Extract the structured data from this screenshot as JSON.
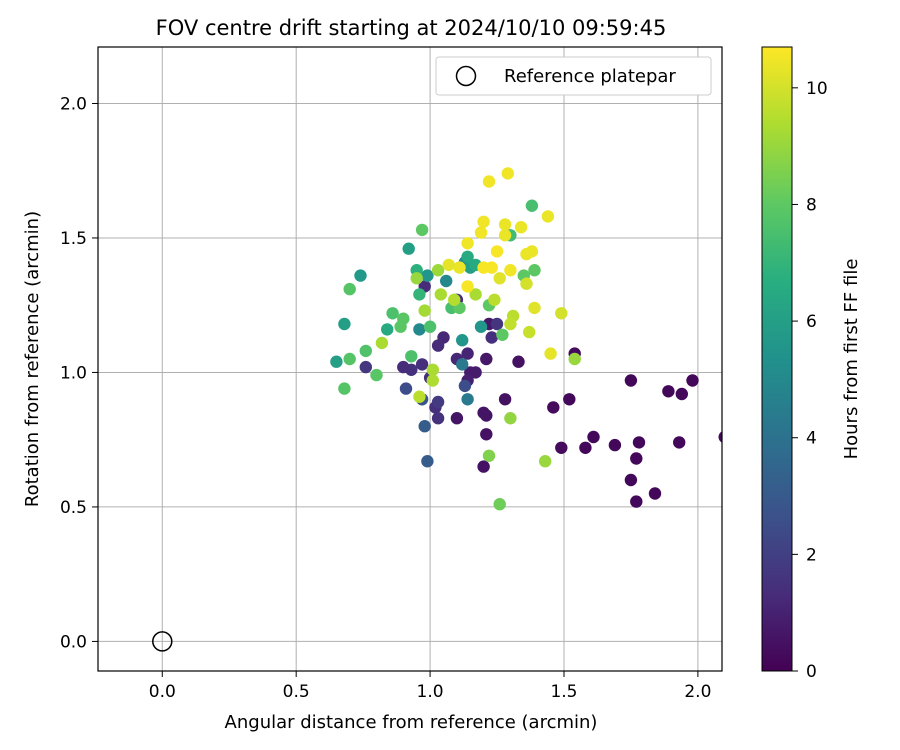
{
  "chart_data": {
    "type": "scatter",
    "title": "FOV centre drift starting at 2024/10/10 09:59:45",
    "xlabel": "Angular distance from reference (arcmin)",
    "ylabel": "Rotation from reference (arcmin)",
    "xlim": [
      -0.24,
      2.09
    ],
    "ylim": [
      -0.11,
      2.21
    ],
    "xticks": [
      0.0,
      0.5,
      1.0,
      1.5,
      2.0
    ],
    "xtick_labels": [
      "0.0",
      "0.5",
      "1.0",
      "1.5",
      "2.0"
    ],
    "yticks": [
      0.0,
      0.5,
      1.0,
      1.5,
      2.0
    ],
    "ytick_labels": [
      "0.0",
      "0.5",
      "1.0",
      "1.5",
      "2.0"
    ],
    "grid": true,
    "legend": {
      "position": "top-right",
      "label": "Reference platepar"
    },
    "reference_point": {
      "x": 0.0,
      "y": 0.0
    },
    "colorbar": {
      "label": "Hours from first FF file",
      "min": 0,
      "max": 10.7,
      "ticks": [
        0,
        2,
        4,
        6,
        8,
        10
      ],
      "tick_labels": [
        "0",
        "2",
        "4",
        "6",
        "8",
        "10"
      ],
      "colormap": "viridis"
    },
    "points": [
      [
        1.98,
        0.97,
        0.2
      ],
      [
        1.94,
        0.92,
        0.2
      ],
      [
        1.93,
        0.74,
        0.2
      ],
      [
        1.89,
        0.93,
        0.2
      ],
      [
        1.84,
        0.55,
        0.2
      ],
      [
        1.78,
        0.74,
        0.2
      ],
      [
        1.77,
        0.52,
        0.2
      ],
      [
        1.77,
        0.68,
        0.2
      ],
      [
        1.75,
        0.6,
        0.2
      ],
      [
        1.75,
        0.97,
        0.2
      ],
      [
        1.69,
        0.73,
        0.2
      ],
      [
        1.61,
        0.76,
        0.2
      ],
      [
        1.58,
        0.72,
        0.2
      ],
      [
        1.54,
        1.07,
        0.3
      ],
      [
        1.52,
        0.9,
        0.2
      ],
      [
        1.49,
        0.72,
        0.3
      ],
      [
        1.46,
        0.87,
        0.3
      ],
      [
        1.33,
        1.04,
        0.5
      ],
      [
        1.28,
        0.9,
        0.5
      ],
      [
        1.21,
        0.84,
        0.6
      ],
      [
        1.21,
        0.77,
        0.5
      ],
      [
        1.2,
        0.85,
        0.6
      ],
      [
        1.2,
        0.65,
        0.5
      ],
      [
        1.21,
        1.05,
        0.7
      ],
      [
        1.22,
        1.18,
        0.7
      ],
      [
        1.17,
        1.0,
        0.8
      ],
      [
        1.15,
        1.0,
        0.8
      ],
      [
        1.14,
        0.97,
        0.9
      ],
      [
        1.1,
        0.83,
        0.6
      ],
      [
        1.14,
        1.07,
        1.1
      ],
      [
        1.1,
        1.05,
        1.2
      ],
      [
        1.05,
        1.13,
        1.2
      ],
      [
        1.03,
        1.1,
        1.3
      ],
      [
        1.02,
        0.87,
        1.4
      ],
      [
        1.03,
        0.83,
        1.5
      ],
      [
        1.03,
        0.89,
        1.8
      ],
      [
        1.0,
        0.98,
        1.5
      ],
      [
        0.97,
        1.03,
        1.4
      ],
      [
        0.93,
        1.01,
        1.4
      ],
      [
        0.9,
        1.02,
        1.3
      ],
      [
        0.98,
        1.32,
        1.3
      ],
      [
        1.1,
        1.27,
        1.4
      ],
      [
        1.23,
        1.13,
        1.4
      ],
      [
        1.25,
        1.18,
        1.6
      ],
      [
        0.76,
        1.02,
        1.7
      ],
      [
        1.13,
        0.95,
        2.5
      ],
      [
        0.91,
        0.94,
        2.5
      ],
      [
        0.97,
        0.9,
        2.8
      ],
      [
        0.98,
        0.8,
        3.1
      ],
      [
        0.99,
        0.67,
        3.1
      ],
      [
        1.14,
        0.9,
        4.3
      ],
      [
        1.12,
        1.03,
        4.3
      ],
      [
        1.13,
        1.41,
        5.0
      ],
      [
        0.99,
        1.36,
        5.6
      ],
      [
        1.06,
        1.34,
        5.0
      ],
      [
        0.96,
        1.16,
        5.0
      ],
      [
        1.19,
        1.17,
        5.6
      ],
      [
        1.12,
        1.12,
        5.6
      ],
      [
        0.74,
        1.36,
        5.7
      ],
      [
        0.92,
        1.46,
        6.0
      ],
      [
        0.68,
        1.18,
        6.0
      ],
      [
        0.65,
        1.04,
        6.0
      ],
      [
        1.15,
        1.39,
        6.0
      ],
      [
        1.17,
        1.4,
        6.5
      ],
      [
        1.14,
        1.43,
        6.5
      ],
      [
        0.84,
        1.16,
        6.5
      ],
      [
        0.95,
        1.38,
        6.8
      ],
      [
        0.96,
        1.29,
        7.0
      ],
      [
        1.3,
        1.51,
        7.3
      ],
      [
        1.38,
        1.62,
        7.5
      ],
      [
        1.08,
        1.24,
        7.5
      ],
      [
        0.93,
        1.06,
        7.6
      ],
      [
        1.0,
        1.17,
        7.6
      ],
      [
        0.86,
        1.22,
        7.6
      ],
      [
        0.76,
        1.08,
        7.7
      ],
      [
        0.7,
        1.31,
        7.8
      ],
      [
        0.68,
        0.94,
        7.8
      ],
      [
        0.7,
        1.05,
        7.8
      ],
      [
        0.8,
        0.99,
        7.9
      ],
      [
        0.89,
        1.17,
        7.9
      ],
      [
        0.9,
        1.2,
        7.9
      ],
      [
        0.97,
        1.53,
        8.0
      ],
      [
        1.11,
        1.24,
        8.0
      ],
      [
        1.22,
        1.25,
        8.0
      ],
      [
        1.27,
        1.14,
        8.0
      ],
      [
        1.35,
        1.36,
        8.0
      ],
      [
        1.39,
        1.38,
        8.0
      ],
      [
        1.22,
        0.69,
        8.6
      ],
      [
        1.26,
        0.51,
        8.3
      ],
      [
        1.3,
        0.83,
        8.9
      ],
      [
        1.43,
        0.67,
        9.0
      ],
      [
        1.54,
        1.05,
        9.0
      ],
      [
        0.95,
        1.35,
        9.0
      ],
      [
        1.03,
        1.38,
        9.1
      ],
      [
        0.98,
        1.23,
        9.2
      ],
      [
        0.82,
        1.11,
        9.3
      ],
      [
        1.04,
        1.29,
        9.3
      ],
      [
        1.17,
        1.29,
        9.3
      ],
      [
        1.09,
        1.27,
        9.5
      ],
      [
        1.01,
        1.01,
        9.3
      ],
      [
        1.01,
        0.97,
        9.4
      ],
      [
        0.96,
        0.91,
        9.6
      ],
      [
        1.24,
        1.27,
        9.6
      ],
      [
        1.31,
        1.21,
        9.6
      ],
      [
        1.3,
        1.18,
        9.7
      ],
      [
        1.37,
        1.15,
        9.8
      ],
      [
        1.49,
        1.22,
        10.0
      ],
      [
        1.45,
        1.07,
        10.3
      ],
      [
        1.39,
        1.24,
        10.2
      ],
      [
        1.36,
        1.33,
        10.0
      ],
      [
        1.38,
        1.45,
        10.4
      ],
      [
        1.36,
        1.44,
        10.4
      ],
      [
        1.34,
        1.54,
        10.4
      ],
      [
        1.28,
        1.55,
        10.4
      ],
      [
        1.28,
        1.51,
        10.4
      ],
      [
        1.29,
        1.74,
        10.5
      ],
      [
        1.22,
        1.71,
        10.5
      ],
      [
        1.2,
        1.56,
        10.5
      ],
      [
        1.19,
        1.52,
        10.5
      ],
      [
        1.14,
        1.48,
        10.5
      ],
      [
        1.25,
        1.45,
        10.6
      ],
      [
        1.23,
        1.39,
        10.6
      ],
      [
        1.2,
        1.39,
        10.6
      ],
      [
        1.14,
        1.32,
        10.6
      ],
      [
        1.3,
        1.38,
        10.5
      ],
      [
        1.44,
        1.58,
        10.4
      ],
      [
        1.11,
        1.39,
        10.4
      ],
      [
        1.07,
        1.4,
        10.3
      ],
      [
        1.26,
        1.35,
        10.2
      ],
      [
        2.1,
        0.76,
        0.2
      ]
    ]
  }
}
